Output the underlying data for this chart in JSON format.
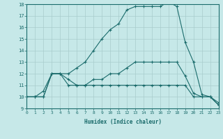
{
  "xlabel": "Humidex (Indice chaleur)",
  "xlim": [
    0,
    23
  ],
  "ylim": [
    9,
    18
  ],
  "yticks": [
    9,
    10,
    11,
    12,
    13,
    14,
    15,
    16,
    17,
    18
  ],
  "xticks": [
    0,
    1,
    2,
    3,
    4,
    5,
    6,
    7,
    8,
    9,
    10,
    11,
    12,
    13,
    14,
    15,
    16,
    17,
    18,
    19,
    20,
    21,
    22,
    23
  ],
  "bg_color": "#c6e8e8",
  "line_color": "#1a6b6b",
  "grid_color": "#a8cccc",
  "line1_x": [
    0,
    1,
    2,
    3,
    4,
    5,
    6,
    7,
    8,
    9,
    10,
    11,
    12,
    13,
    14,
    15,
    16,
    17,
    18,
    19,
    20,
    21,
    22,
    23
  ],
  "line1_y": [
    10,
    10,
    10,
    12,
    12,
    11,
    11,
    11,
    11,
    11,
    11,
    11,
    11,
    11,
    11,
    11,
    11,
    11,
    11,
    11,
    10,
    10,
    10,
    9.5
  ],
  "line2_x": [
    0,
    1,
    2,
    3,
    4,
    5,
    6,
    7,
    8,
    9,
    10,
    11,
    12,
    13,
    14,
    15,
    16,
    17,
    18,
    19,
    20,
    21,
    22,
    23
  ],
  "line2_y": [
    10,
    10,
    10.5,
    12,
    12,
    11.5,
    11,
    11,
    11.5,
    11.5,
    12,
    12,
    12.5,
    13,
    13,
    13,
    13,
    13,
    13,
    11.8,
    10.3,
    10,
    10,
    9.3
  ],
  "line3_x": [
    0,
    1,
    2,
    3,
    4,
    5,
    6,
    7,
    8,
    9,
    10,
    11,
    12,
    13,
    14,
    15,
    16,
    17,
    18,
    19,
    20,
    21,
    22,
    23
  ],
  "line3_y": [
    10,
    10,
    10,
    12,
    12,
    12,
    12.5,
    13,
    14,
    15,
    15.8,
    16.3,
    17.5,
    17.8,
    17.8,
    17.8,
    17.8,
    18.2,
    17.8,
    14.7,
    13,
    10.2,
    10,
    9.3
  ]
}
